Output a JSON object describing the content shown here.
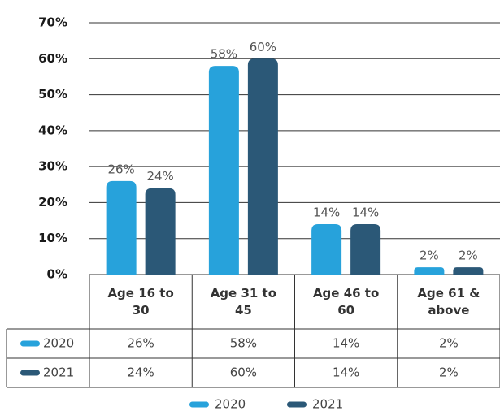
{
  "chart_data": {
    "type": "bar",
    "categories": [
      "Age 16 to 30",
      "Age 31 to 45",
      "Age 46 to 60",
      "Age 61 & above"
    ],
    "series": [
      {
        "name": "2020",
        "color": "#27a2db",
        "values": [
          26,
          58,
          14,
          2
        ],
        "value_labels": [
          "26%",
          "58%",
          "14%",
          "2%"
        ]
      },
      {
        "name": "2021",
        "color": "#2b5877",
        "values": [
          24,
          60,
          14,
          2
        ],
        "value_labels": [
          "24%",
          "60%",
          "14%",
          "2%"
        ]
      }
    ],
    "ylim": [
      0,
      70
    ],
    "yticks": [
      {
        "value": 0,
        "label": "0%"
      },
      {
        "value": 10,
        "label": "10%"
      },
      {
        "value": 20,
        "label": "20%"
      },
      {
        "value": 30,
        "label": "30%"
      },
      {
        "value": 40,
        "label": "40%"
      },
      {
        "value": 50,
        "label": "50%"
      },
      {
        "value": 60,
        "label": "60%"
      },
      {
        "value": 70,
        "label": "70%"
      }
    ],
    "grid": true
  }
}
